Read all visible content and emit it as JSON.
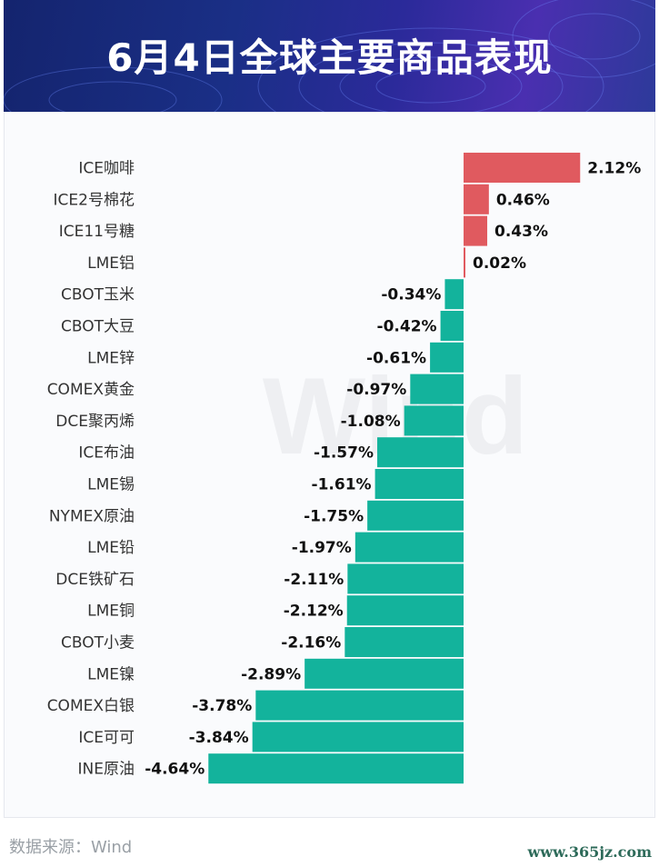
{
  "header": {
    "title": "6月4日全球主要商品表现"
  },
  "footer": {
    "source": "数据来源：Wind",
    "site": "www.365jz.com"
  },
  "watermark": "Wind",
  "colors": {
    "positive": "#e05a5f",
    "negative": "#13b39c",
    "header_bg": "#1a2f86"
  },
  "chart_data": {
    "type": "bar",
    "orientation": "horizontal",
    "title": "6月4日全球主要商品表现",
    "categories": [
      "ICE咖啡",
      "ICE2号棉花",
      "ICE11号糖",
      "LME铝",
      "CBOT玉米",
      "CBOT大豆",
      "LME锌",
      "COMEX黄金",
      "DCE聚丙烯",
      "ICE布油",
      "LME锡",
      "NYMEX原油",
      "LME铅",
      "DCE铁矿石",
      "LME铜",
      "CBOT小麦",
      "LME镍",
      "COMEX白银",
      "ICE可可",
      "INE原油"
    ],
    "values": [
      2.12,
      0.46,
      0.43,
      0.02,
      -0.34,
      -0.42,
      -0.61,
      -0.97,
      -1.08,
      -1.57,
      -1.61,
      -1.75,
      -1.97,
      -2.11,
      -2.12,
      -2.16,
      -2.89,
      -3.78,
      -3.84,
      -4.64
    ],
    "labels": [
      "2.12%",
      "0.46%",
      "0.43%",
      "0.02%",
      "-0.34%",
      "-0.42%",
      "-0.61%",
      "-0.97%",
      "-1.08%",
      "-1.57%",
      "-1.61%",
      "-1.75%",
      "-1.97%",
      "-2.11%",
      "-2.12%",
      "-2.16%",
      "-2.89%",
      "-3.78%",
      "-3.84%",
      "-4.64%"
    ],
    "unit": "%",
    "xlim": [
      -4.64,
      2.12
    ],
    "grid": false,
    "legend": "none"
  }
}
